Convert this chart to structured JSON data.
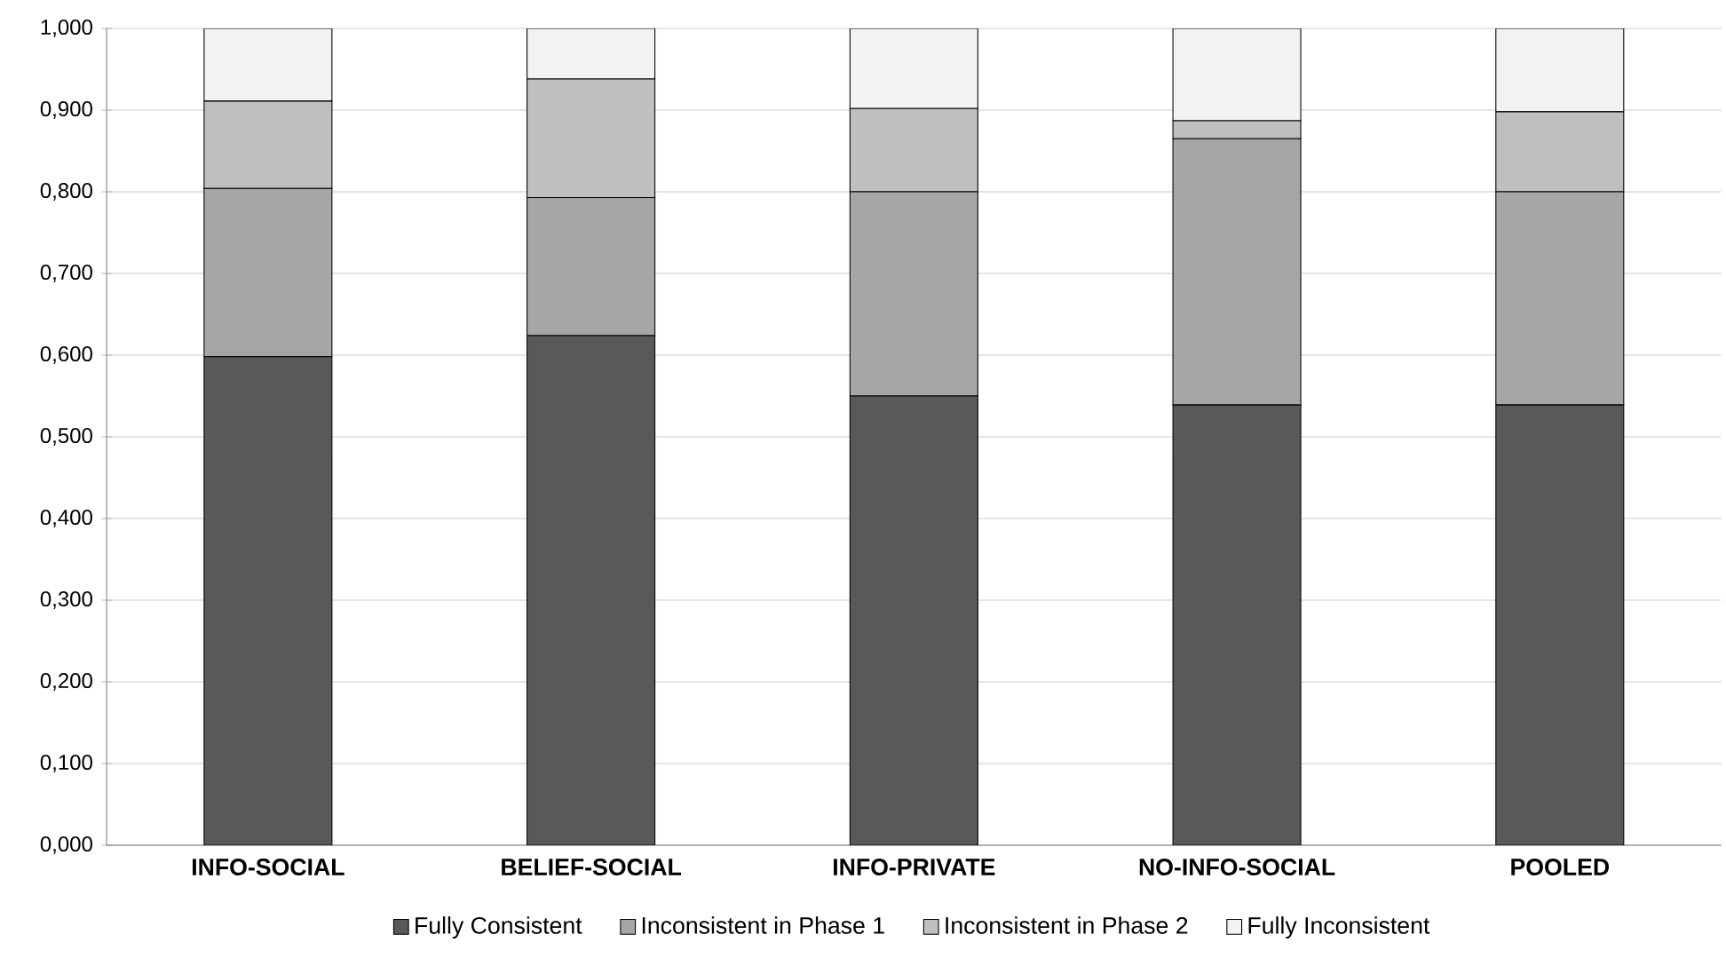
{
  "chart_data": {
    "type": "bar",
    "stacked": true,
    "categories": [
      "INFO-SOCIAL",
      "BELIEF-SOCIAL",
      "INFO-PRIVATE",
      "NO-INFO-SOCIAL",
      "POOLED"
    ],
    "series": [
      {
        "name": "Fully Consistent",
        "color": "#595959",
        "values": [
          0.598,
          0.624,
          0.55,
          0.539,
          0.539
        ]
      },
      {
        "name": "Inconsistent in Phase 1",
        "color": "#a6a6a6",
        "values": [
          0.206,
          0.169,
          0.25,
          0.326,
          0.261
        ]
      },
      {
        "name": "Inconsistent in Phase 2",
        "color": "#bfbfbf",
        "values": [
          0.107,
          0.145,
          0.102,
          0.022,
          0.098
        ]
      },
      {
        "name": "Fully Inconsistent",
        "color": "#f2f2f2",
        "values": [
          0.089,
          0.062,
          0.098,
          0.113,
          0.102
        ]
      }
    ],
    "ylim": [
      0,
      1
    ],
    "yticks": [
      {
        "value": 0,
        "label": "0,000"
      },
      {
        "value": 0.1,
        "label": "0,100"
      },
      {
        "value": 0.2,
        "label": "0,200"
      },
      {
        "value": 0.3,
        "label": "0,300"
      },
      {
        "value": 0.4,
        "label": "0,400"
      },
      {
        "value": 0.5,
        "label": "0,500"
      },
      {
        "value": 0.6,
        "label": "0,600"
      },
      {
        "value": 0.7,
        "label": "0,700"
      },
      {
        "value": 0.8,
        "label": "0,800"
      },
      {
        "value": 0.9,
        "label": "0,900"
      },
      {
        "value": 1,
        "label": "1,000"
      }
    ],
    "grid": "y",
    "legend": "bottom"
  }
}
